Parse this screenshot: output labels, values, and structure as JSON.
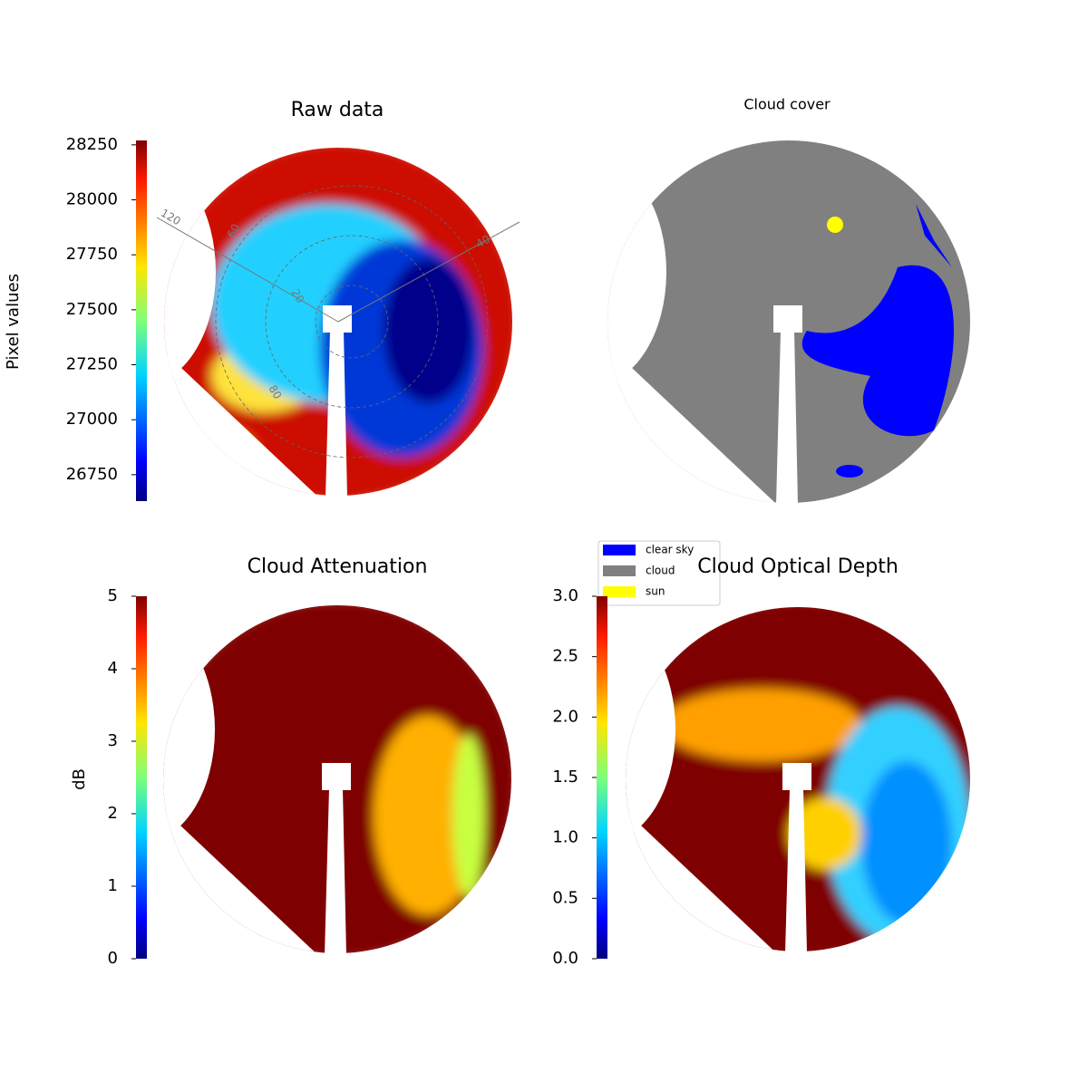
{
  "chart_data": [
    {
      "type": "sky-image",
      "title": "Raw data",
      "colormap": "jet",
      "fill": "raw",
      "colorbar_label": "Pixel values",
      "ylim": [
        26630,
        28270
      ],
      "yticks": [
        26750,
        27000,
        27250,
        27500,
        27750,
        28000,
        28250
      ],
      "annotations": [
        "120",
        "60",
        "40",
        "20",
        "80"
      ]
    },
    {
      "type": "sky-mask",
      "title": "Cloud cover",
      "series": [
        {
          "name": "clear sky",
          "color": "#0000ff"
        },
        {
          "name": "cloud",
          "color": "#808080"
        },
        {
          "name": "sun",
          "color": "#ffff00"
        }
      ]
    },
    {
      "type": "sky-image",
      "title": "Cloud Attenuation",
      "colormap": "jet",
      "fill": "attenuation",
      "colorbar_label": "dB",
      "ylim": [
        0,
        5
      ],
      "yticks": [
        0,
        1,
        2,
        3,
        4,
        5
      ]
    },
    {
      "type": "sky-image",
      "title": "Cloud Optical Depth",
      "colormap": "jet",
      "fill": "depth",
      "ylim": [
        0,
        3
      ],
      "yticks": [
        {
          "value": 0,
          "label": "0.0"
        },
        0.5,
        {
          "value": 1,
          "label": "1.0"
        },
        1.5,
        {
          "value": 2,
          "label": "2.0"
        },
        2.5,
        {
          "value": 3,
          "label": "3.0"
        }
      ]
    }
  ]
}
